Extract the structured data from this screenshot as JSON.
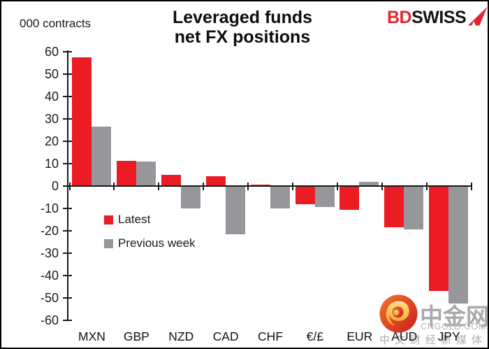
{
  "header": {
    "units_label": "000 contracts",
    "title_line1": "Leveraged funds",
    "title_line2": "net FX positions"
  },
  "brand": {
    "part1": "BD",
    "part2": "SWISS",
    "icon": "swiss-pennant-icon",
    "red": "#e4252b",
    "black": "#141414"
  },
  "chart_data": {
    "type": "bar",
    "title": "Leveraged funds net FX positions",
    "ylabel": "000 contracts",
    "xlabel": "",
    "ylim": [
      -60,
      60
    ],
    "yticks": [
      60,
      50,
      40,
      30,
      20,
      10,
      0,
      -10,
      -20,
      -30,
      -40,
      -50,
      -60
    ],
    "grid": false,
    "legend_position": "inside top-left below zero line",
    "categories": [
      "MXN",
      "GBP",
      "NZD",
      "CAD",
      "CHF",
      "€/£",
      "EUR",
      "AUD",
      "JPY"
    ],
    "series": [
      {
        "name": "Latest",
        "color": "#ec1c24",
        "values": [
          57.5,
          11.3,
          5.0,
          4.5,
          0.7,
          -8.0,
          -10.5,
          -18.5,
          -47.0
        ]
      },
      {
        "name": "Previous week",
        "color": "#97969b",
        "values": [
          26.5,
          11.0,
          -10.0,
          -21.5,
          -10.0,
          -9.5,
          2.0,
          -19.3,
          -52.5
        ]
      }
    ]
  },
  "watermark": {
    "logo_icon": "cngold-cloud-icon",
    "site_name": "中金网",
    "domain": "CNGOLD.COM.CN",
    "tagline": "中文财经新媒体"
  }
}
